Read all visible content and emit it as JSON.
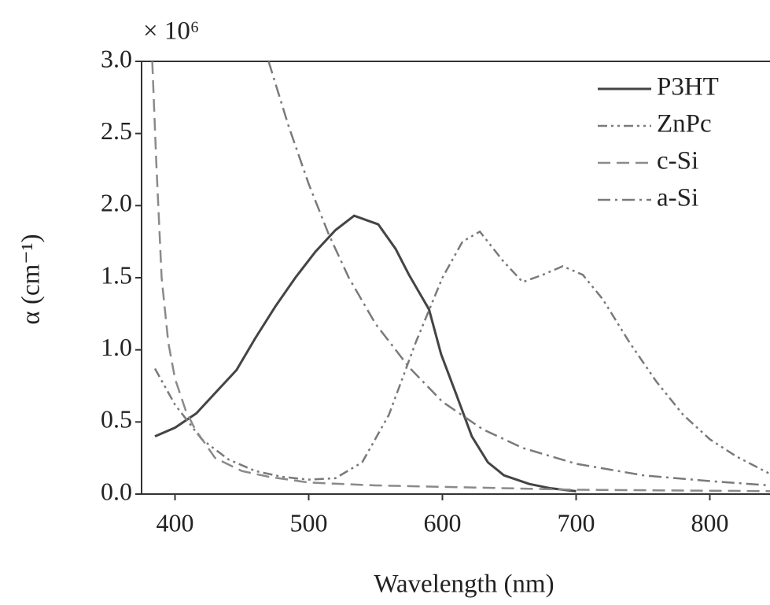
{
  "chart_data": {
    "type": "line",
    "multiplier": "× 10⁶",
    "xlabel": "Wavelength (nm)",
    "ylabel": "α (cm⁻¹)",
    "xlim": [
      375,
      845
    ],
    "xticks": [
      400,
      500,
      600,
      700,
      800
    ],
    "ylim": [
      0,
      3
    ],
    "yticks": [
      {
        "value": 0,
        "label": "0.0"
      },
      {
        "value": 0.5,
        "label": "0.5"
      },
      {
        "value": 1,
        "label": "1.0"
      },
      {
        "value": 1.5,
        "label": "1.5"
      },
      {
        "value": 2,
        "label": "2.0"
      },
      {
        "value": 2.5,
        "label": "2.5"
      },
      {
        "value": 3,
        "label": "3.0"
      }
    ],
    "legend": "upper right",
    "series": [
      {
        "name": "P3HT",
        "color": "#444444",
        "linestyle": "solid",
        "x": [
          385,
          400,
          416,
          430,
          446,
          460,
          475,
          490,
          505,
          520,
          534,
          552,
          565,
          575,
          590,
          599,
          610,
          622,
          634,
          646,
          665,
          681,
          700
        ],
        "values": [
          0.4,
          0.46,
          0.56,
          0.7,
          0.86,
          1.08,
          1.3,
          1.5,
          1.68,
          1.83,
          1.93,
          1.87,
          1.7,
          1.52,
          1.28,
          0.97,
          0.7,
          0.4,
          0.22,
          0.13,
          0.07,
          0.04,
          0.02
        ]
      },
      {
        "name": "ZnPc",
        "color": "#7a7a7a",
        "linestyle": "dash-dot-dot",
        "x": [
          385,
          400,
          420,
          440,
          460,
          480,
          500,
          520,
          540,
          560,
          580,
          600,
          615,
          628,
          645,
          660,
          675,
          690,
          705,
          720,
          740,
          760,
          780,
          800,
          820,
          845
        ],
        "values": [
          0.87,
          0.62,
          0.38,
          0.24,
          0.16,
          0.12,
          0.1,
          0.11,
          0.22,
          0.55,
          1.05,
          1.5,
          1.75,
          1.82,
          1.62,
          1.47,
          1.52,
          1.58,
          1.52,
          1.35,
          1.05,
          0.78,
          0.55,
          0.38,
          0.26,
          0.14
        ]
      },
      {
        "name": "c-Si",
        "color": "#8a8a8a",
        "linestyle": "dashed",
        "x": [
          383,
          386,
          390,
          395,
          400,
          408,
          415,
          430,
          450,
          470,
          500,
          550,
          600,
          700,
          845
        ],
        "values": [
          3.0,
          2.3,
          1.5,
          1.05,
          0.8,
          0.58,
          0.45,
          0.25,
          0.16,
          0.12,
          0.08,
          0.06,
          0.05,
          0.03,
          0.02
        ]
      },
      {
        "name": "a-Si",
        "color": "#7a7a7a",
        "linestyle": "dash-dot",
        "x": [
          470,
          485,
          500,
          515,
          530,
          550,
          575,
          600,
          630,
          660,
          700,
          750,
          800,
          845
        ],
        "values": [
          3.0,
          2.55,
          2.15,
          1.8,
          1.5,
          1.18,
          0.88,
          0.64,
          0.45,
          0.32,
          0.21,
          0.13,
          0.09,
          0.06
        ]
      }
    ]
  }
}
